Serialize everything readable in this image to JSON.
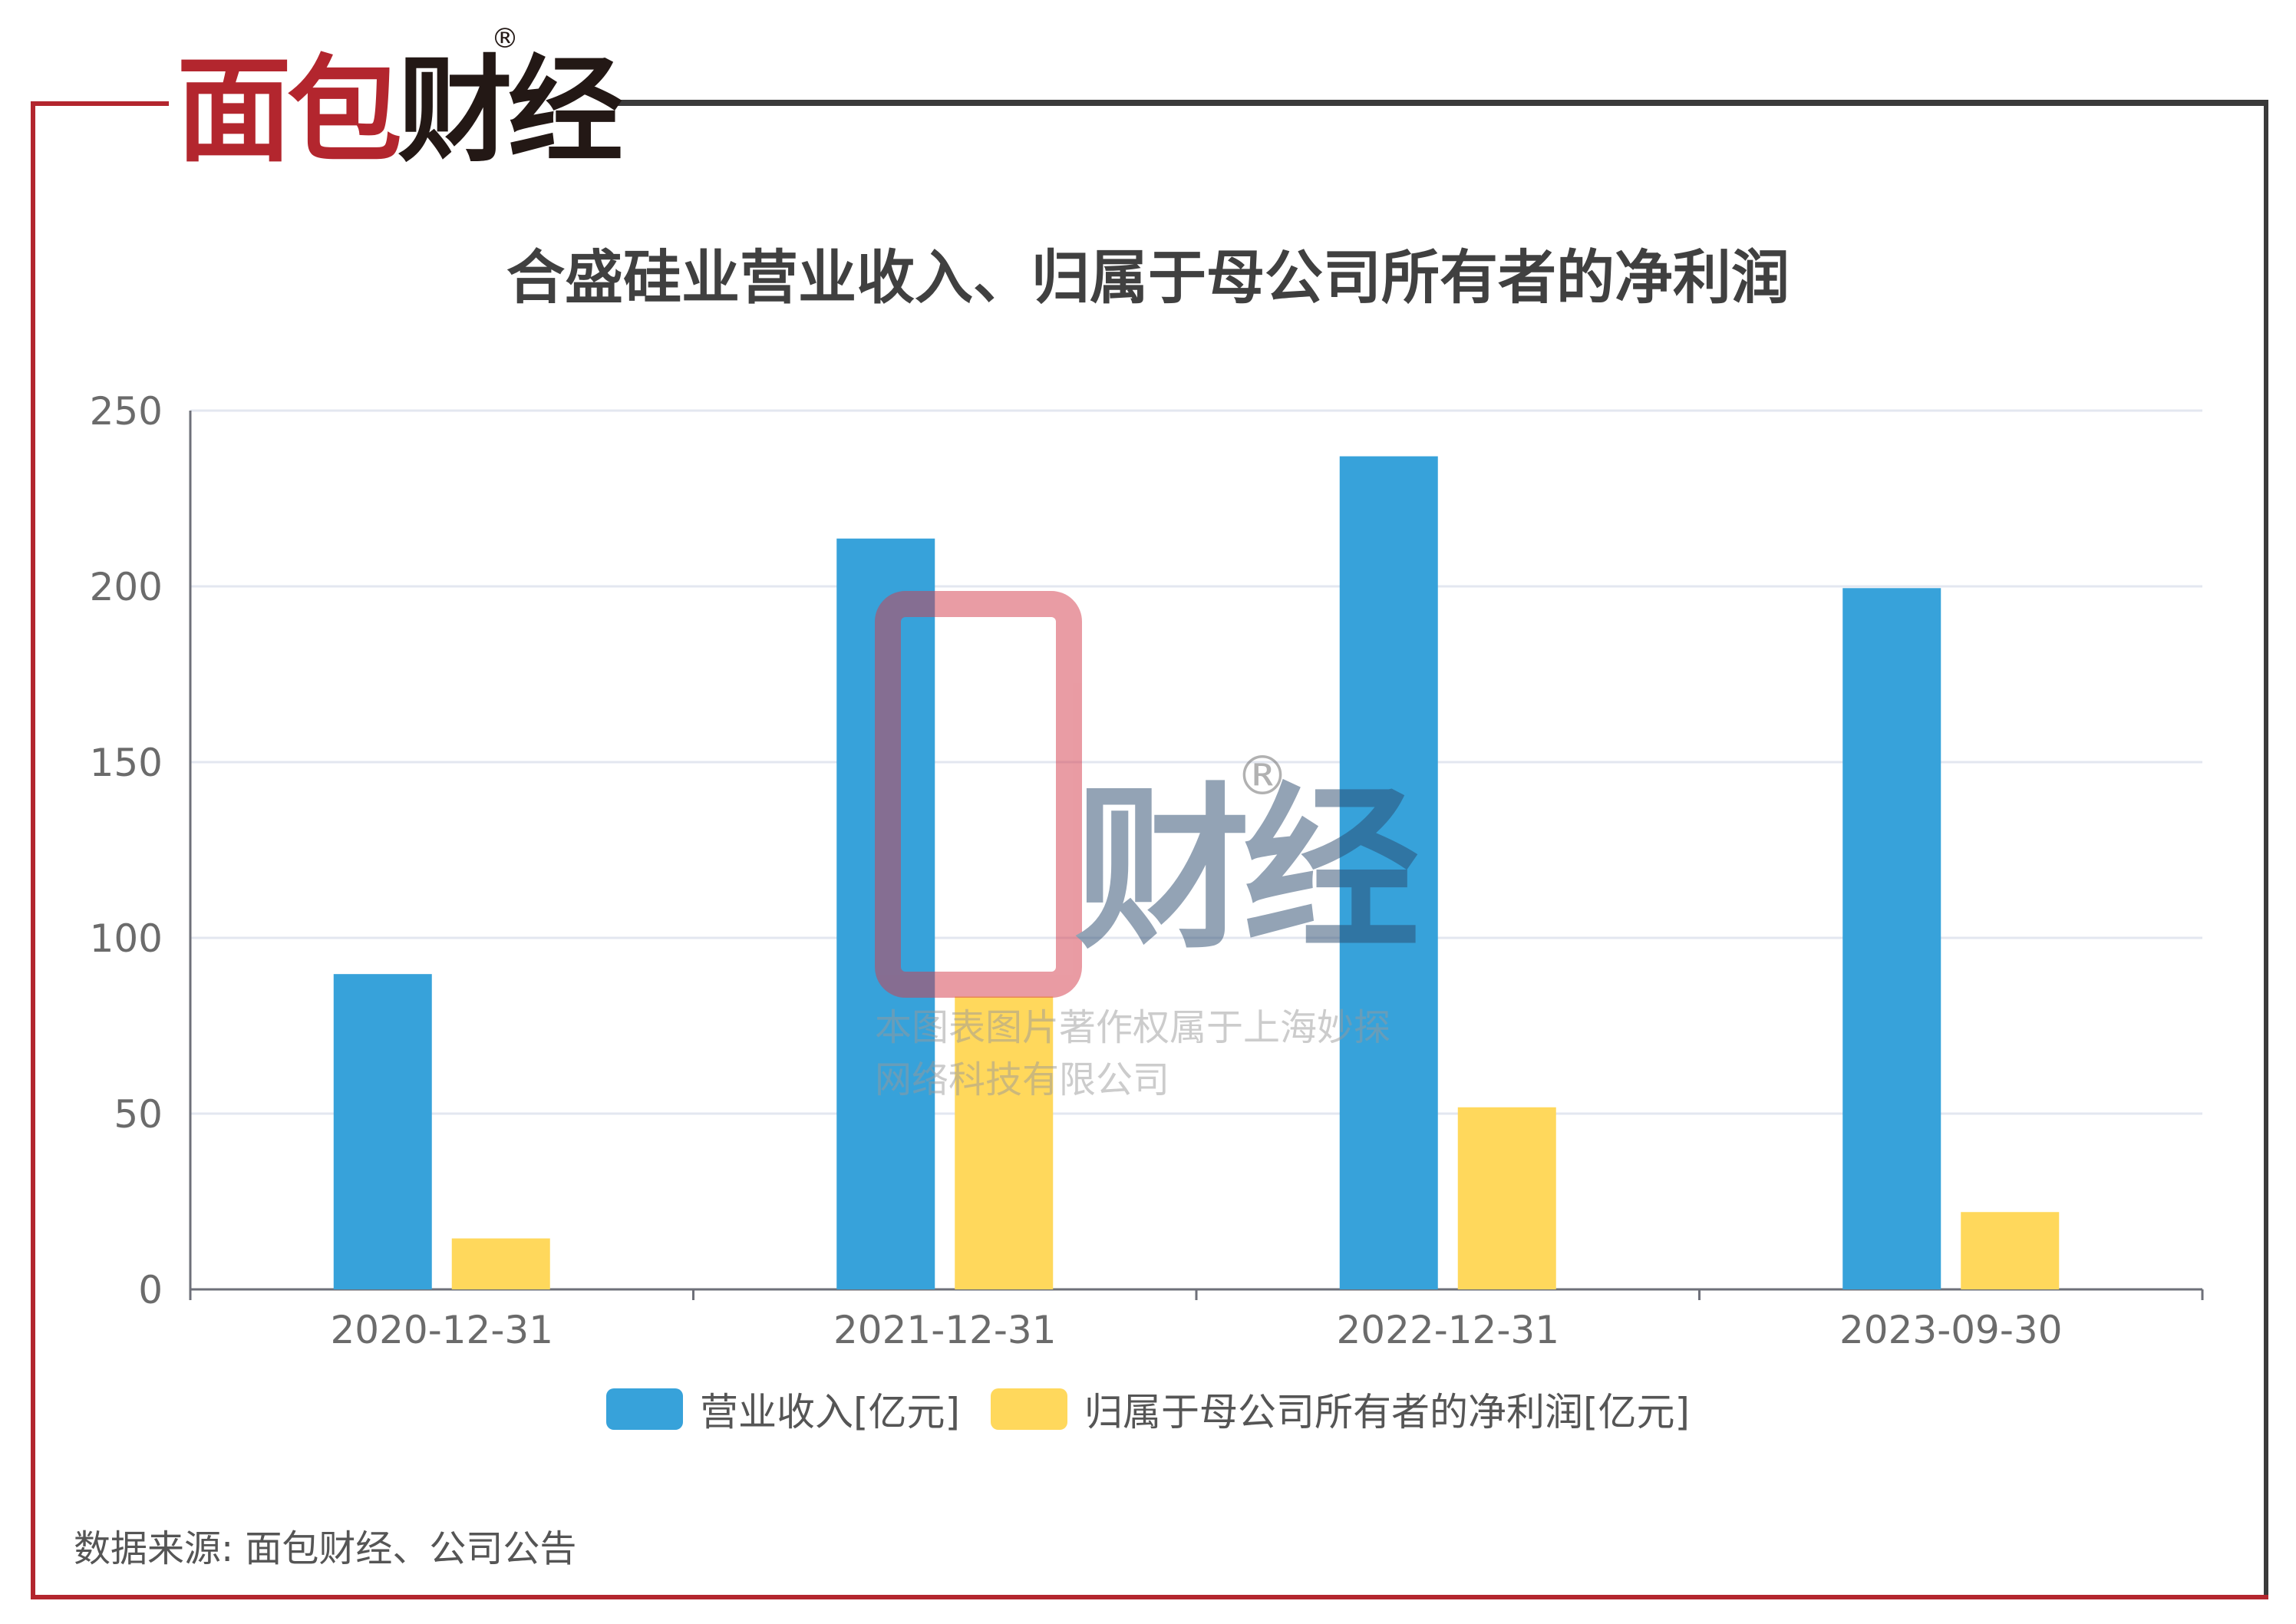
{
  "brand": {
    "logo_part1": "面包",
    "logo_part2": "财经",
    "registered_mark": "®"
  },
  "watermark": {
    "text": "财经",
    "note_line1": "本图表图片著作权属于上海妙探",
    "note_line2": "网络科技有限公司"
  },
  "source": "数据来源: 面包财经、公司公告",
  "colors": {
    "frame_red": "#b3262e",
    "frame_dark": "#3a3a3a",
    "series1": "#37a2da",
    "series2": "#ffd85c"
  },
  "chart_data": {
    "type": "bar",
    "title": "合盛硅业营业收入、归属于母公司所有者的净利润",
    "categories": [
      "2020-12-31",
      "2021-12-31",
      "2022-12-31",
      "2023-09-30"
    ],
    "series": [
      {
        "name": "营业收入[亿元]",
        "values": [
          89.7,
          213.6,
          237.0,
          199.5
        ],
        "color": "#37a2da"
      },
      {
        "name": "归属于母公司所有者的净利润[亿元]",
        "values": [
          14.5,
          83.3,
          51.8,
          22.0
        ],
        "color": "#ffd85c"
      }
    ],
    "yticks": [
      "0",
      "50",
      "100",
      "150",
      "200",
      "250"
    ],
    "ylim": [
      0,
      250
    ],
    "grid": true,
    "legend_position": "bottom"
  }
}
